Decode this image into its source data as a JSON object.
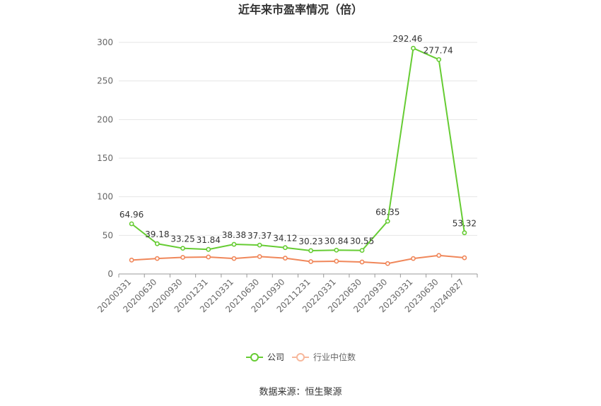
{
  "chart_data": {
    "type": "line",
    "title": "近年来市盈率情况（倍）",
    "categories": [
      "20200331",
      "20200630",
      "20200930",
      "20201231",
      "20210331",
      "20210630",
      "20210930",
      "20211231",
      "20220331",
      "20220630",
      "20220930",
      "20230331",
      "20230630",
      "20240827"
    ],
    "series": [
      {
        "name": "公司",
        "color": "#66cc33",
        "values": [
          64.96,
          39.18,
          33.25,
          31.84,
          38.38,
          37.37,
          34.12,
          30.23,
          30.84,
          30.55,
          68.35,
          292.46,
          277.74,
          53.32
        ],
        "labels": [
          "64.96",
          "39.18",
          "33.25",
          "31.84",
          "38.38",
          "37.37",
          "34.12",
          "30.23",
          "30.84",
          "30.55",
          "68.35",
          "292.46",
          "277.74",
          "53.32"
        ]
      },
      {
        "name": "行业中位数",
        "color": "#f0875a",
        "values": [
          18,
          20,
          21.5,
          22,
          20,
          22.5,
          20.5,
          16,
          16.5,
          15.5,
          13.5,
          20,
          24,
          21
        ]
      }
    ],
    "yticks": [
      "0",
      "50",
      "100",
      "150",
      "200",
      "250",
      "300"
    ],
    "ylim": [
      0,
      300
    ],
    "grid": true,
    "legend_position": "bottom",
    "source": "数据来源：恒生聚源"
  }
}
